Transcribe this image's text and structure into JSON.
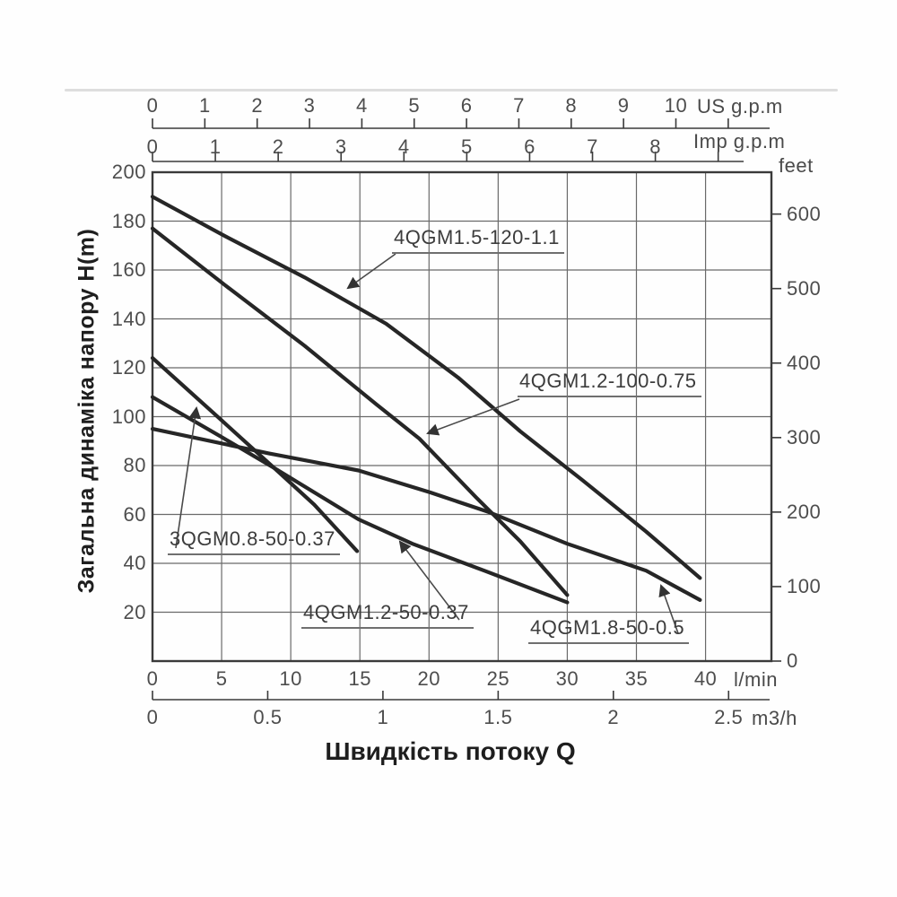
{
  "chart_data": {
    "type": "line",
    "title_x": "Швидкість потоку Q",
    "title_y": "Загальна динаміка напору H(m)",
    "grid": true,
    "axes": {
      "us_gpm": {
        "label": "US g.p.m",
        "ticks": [
          0,
          1,
          2,
          3,
          4,
          5,
          6,
          7,
          8,
          9,
          10
        ],
        "extra_unlabeled_ticks": [
          11
        ]
      },
      "imp_gpm": {
        "label": "Imp g.p.m",
        "ticks": [
          0,
          1,
          2,
          3,
          4,
          5,
          6,
          7,
          8
        ],
        "extra_unlabeled_ticks": [
          9
        ]
      },
      "h_m": {
        "label": "H(m)",
        "ticks": [
          200,
          180,
          160,
          140,
          120,
          100,
          80,
          60,
          40,
          20
        ],
        "range": [
          0,
          200
        ]
      },
      "feet": {
        "label": "feet",
        "ticks": [
          600,
          500,
          400,
          300,
          200,
          100,
          0
        ]
      },
      "l_min": {
        "label": "l/min",
        "ticks": [
          0,
          5,
          10,
          15,
          20,
          25,
          30,
          35,
          40
        ],
        "range": [
          0,
          44.8
        ]
      },
      "m3_h": {
        "label": "m3/h",
        "ticks": [
          0,
          0.5,
          1,
          1.5,
          2,
          2.5
        ]
      }
    },
    "series": [
      {
        "name": "4QGM1.5-120-1.1",
        "points_q_lmin_h_m": [
          [
            0,
            190
          ],
          [
            5.2,
            174
          ],
          [
            11,
            157
          ],
          [
            16.9,
            138
          ],
          [
            22.1,
            116
          ],
          [
            26.6,
            94
          ],
          [
            31.1,
            74
          ],
          [
            35.7,
            53
          ],
          [
            39.6,
            34
          ]
        ]
      },
      {
        "name": "4QGM1.2-100-0.75",
        "points_q_lmin_h_m": [
          [
            0,
            177
          ],
          [
            5.2,
            154
          ],
          [
            11,
            129
          ],
          [
            16.2,
            105
          ],
          [
            19.3,
            91
          ],
          [
            23.4,
            67
          ],
          [
            26.6,
            49
          ],
          [
            30,
            27
          ]
        ]
      },
      {
        "name": "3QGM0.8-50-0.37",
        "points_q_lmin_h_m": [
          [
            0,
            124
          ],
          [
            4.9,
            99
          ],
          [
            8.8,
            79
          ],
          [
            11.7,
            64
          ],
          [
            14.8,
            45
          ]
        ]
      },
      {
        "name": "4QGM1.2-50-0.37",
        "points_q_lmin_h_m": [
          [
            0,
            108
          ],
          [
            4.9,
            92
          ],
          [
            8.8,
            79
          ],
          [
            14.9,
            58
          ],
          [
            18.8,
            48
          ],
          [
            24,
            37
          ],
          [
            30,
            24
          ]
        ]
      },
      {
        "name": "4QGM1.8-50-0.5",
        "points_q_lmin_h_m": [
          [
            0,
            95
          ],
          [
            8.4,
            85
          ],
          [
            14.9,
            78
          ],
          [
            20.1,
            69
          ],
          [
            24.3,
            61
          ],
          [
            30,
            48
          ],
          [
            35.7,
            37
          ],
          [
            39.6,
            25
          ]
        ]
      }
    ],
    "colors": {
      "curve": "#262626",
      "grid": "#6a6a6a",
      "box": "#3a3a3a",
      "tick_text": "#4d4d4d",
      "leader": "#4a4a4a"
    }
  }
}
